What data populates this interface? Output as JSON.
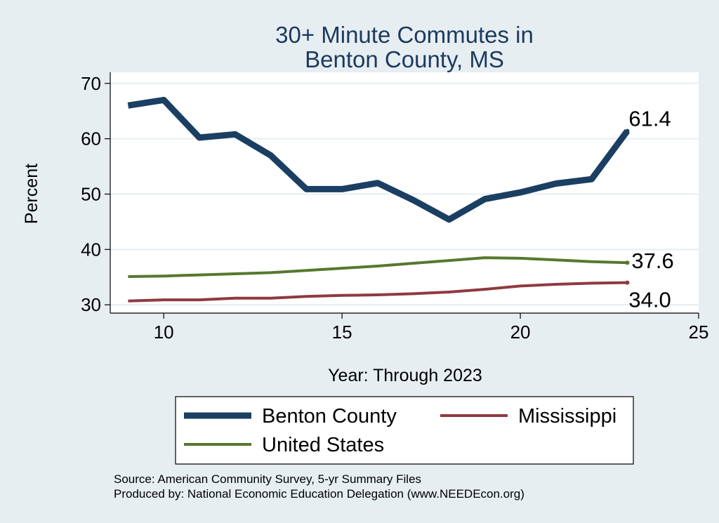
{
  "chart_data": {
    "type": "line",
    "title_lines": [
      "30+ Minute Commutes in",
      "Benton County, MS"
    ],
    "xlabel": "Year: Through 2023",
    "ylabel": "Percent",
    "xlim": [
      8.5,
      25
    ],
    "ylim": [
      28.5,
      72
    ],
    "xticks": [
      10,
      15,
      20,
      25
    ],
    "yticks": [
      30,
      40,
      50,
      60,
      70
    ],
    "grid": true,
    "legend_position": "bottom",
    "x": [
      9,
      10,
      11,
      12,
      13,
      14,
      15,
      16,
      17,
      18,
      19,
      20,
      21,
      22,
      23
    ],
    "series": [
      {
        "name": "Benton County",
        "color": "#1b3f62",
        "values": [
          66.0,
          67.0,
          60.2,
          60.8,
          57.0,
          50.9,
          50.9,
          52.0,
          48.9,
          45.4,
          49.1,
          50.3,
          51.9,
          52.7,
          61.4
        ],
        "end_label": "61.4"
      },
      {
        "name": "Mississippi",
        "color": "#8f3a3f",
        "values": [
          30.7,
          30.9,
          30.9,
          31.2,
          31.2,
          31.5,
          31.7,
          31.8,
          32.0,
          32.3,
          32.8,
          33.4,
          33.7,
          33.9,
          34.0
        ],
        "end_label": "34.0"
      },
      {
        "name": "United States",
        "color": "#56782f",
        "values": [
          35.1,
          35.2,
          35.4,
          35.6,
          35.8,
          36.2,
          36.6,
          37.0,
          37.5,
          38.0,
          38.5,
          38.4,
          38.1,
          37.8,
          37.6
        ],
        "end_label": "37.6"
      }
    ]
  },
  "notes": [
    "Source: American Community Survey, 5-yr Summary Files",
    "Produced by: National Economic Education Delegation (www.NEEDEcon.org)"
  ]
}
